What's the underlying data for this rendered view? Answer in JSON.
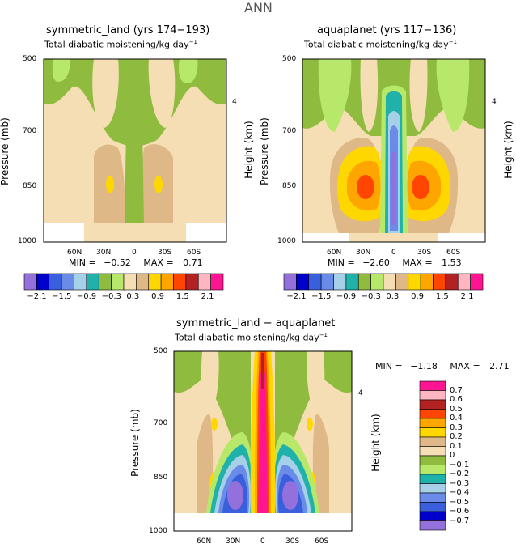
{
  "figure": {
    "season": "ANN"
  },
  "chart_data": [
    {
      "type": "contour",
      "title": "symmetric_land (yrs 174−193)",
      "subtitle": "Total diabatic moistening/kg day",
      "subtitle_exp": "−1",
      "xlabel": "",
      "ylabel": "Pressure (mb)",
      "ylabel_right": "Height (km)",
      "x_ticks": [
        "60N",
        "30N",
        "0",
        "30S",
        "60S"
      ],
      "x_values": [
        60,
        30,
        0,
        -30,
        -60
      ],
      "xlim": [
        90,
        -90
      ],
      "y_ticks": [
        "500",
        "700",
        "850",
        "1000"
      ],
      "y_values": [
        500,
        700,
        850,
        1000
      ],
      "ylim": [
        500,
        1000
      ],
      "right_ticks": [
        "4"
      ],
      "right_values": [
        4
      ],
      "min_label": "MIN =",
      "min": "−0.52",
      "max_label": "MAX =",
      "max": "0.71"
    },
    {
      "type": "contour",
      "title": "aquaplanet (yrs 117−136)",
      "subtitle": "Total diabatic moistening/kg day",
      "subtitle_exp": "−1",
      "xlabel": "",
      "ylabel": "Pressure (mb)",
      "ylabel_right": "Height (km)",
      "x_ticks": [
        "60N",
        "30N",
        "0",
        "30S",
        "60S"
      ],
      "x_values": [
        60,
        30,
        0,
        -30,
        -60
      ],
      "xlim": [
        90,
        -90
      ],
      "y_ticks": [
        "500",
        "700",
        "850",
        "1000"
      ],
      "y_values": [
        500,
        700,
        850,
        1000
      ],
      "ylim": [
        500,
        1000
      ],
      "right_ticks": [
        "4"
      ],
      "right_values": [
        4
      ],
      "min_label": "MIN =",
      "min": "−2.60",
      "max_label": "MAX =",
      "max": "1.53"
    },
    {
      "type": "contour",
      "title": "symmetric_land − aquaplanet",
      "subtitle": "Total diabatic moistening/kg day",
      "subtitle_exp": "−1",
      "xlabel": "",
      "ylabel": "Pressure (mb)",
      "ylabel_right": "Height (km)",
      "x_ticks": [
        "60N",
        "30N",
        "0",
        "30S",
        "60S"
      ],
      "x_values": [
        60,
        30,
        0,
        -30,
        -60
      ],
      "xlim": [
        90,
        -90
      ],
      "y_ticks": [
        "500",
        "700",
        "850",
        "1000"
      ],
      "y_values": [
        500,
        700,
        850,
        1000
      ],
      "ylim": [
        500,
        1000
      ],
      "right_ticks": [
        "4"
      ],
      "right_values": [
        4
      ],
      "min_label": "MIN =",
      "min": "−1.18",
      "max_label": "MAX =",
      "max": "2.71"
    }
  ],
  "colorbar_top": {
    "colors": [
      "#9370db",
      "#0000cd",
      "#3a5fdc",
      "#6a8ce8",
      "#a6cfe8",
      "#20b2aa",
      "#8fbc3f",
      "#b8e86a",
      "#f5deb3",
      "#deb887",
      "#ffd700",
      "#ffa500",
      "#ff4500",
      "#b22222",
      "#ffb6c1",
      "#ff1493"
    ],
    "labels": [
      "−2.1",
      "−1.5",
      "−0.9",
      "−0.3",
      "0.3",
      "0.9",
      "1.5",
      "2.1"
    ]
  },
  "colorbar_bottom": {
    "colors": [
      "#9370db",
      "#0000cd",
      "#3a5fdc",
      "#6a8ce8",
      "#a6cfe8",
      "#20b2aa",
      "#b8e86a",
      "#8fbc3f",
      "#f5deb3",
      "#deb887",
      "#ffd700",
      "#ffa500",
      "#ff4500",
      "#b22222",
      "#ffb6c1",
      "#ff1493"
    ],
    "labels": [
      "0.7",
      "0.6",
      "0.5",
      "0.4",
      "0.3",
      "0.2",
      "0.1",
      "0",
      "−0.1",
      "−0.2",
      "−0.3",
      "−0.4",
      "−0.5",
      "−0.6",
      "−0.7"
    ]
  },
  "colors": {
    "bg_field": "#f5deb3",
    "light_green": "#b8e86a",
    "olive": "#8fbc3f",
    "tan": "#deb887",
    "gold": "#ffd700",
    "orange": "#ffa500",
    "red_orange": "#ff4500",
    "teal": "#20b2aa",
    "light_blue": "#a6cfe8",
    "blue": "#6a8ce8",
    "royal": "#3a5fdc",
    "navy": "#0000cd",
    "purple": "#9370db",
    "pink": "#ff1493"
  }
}
